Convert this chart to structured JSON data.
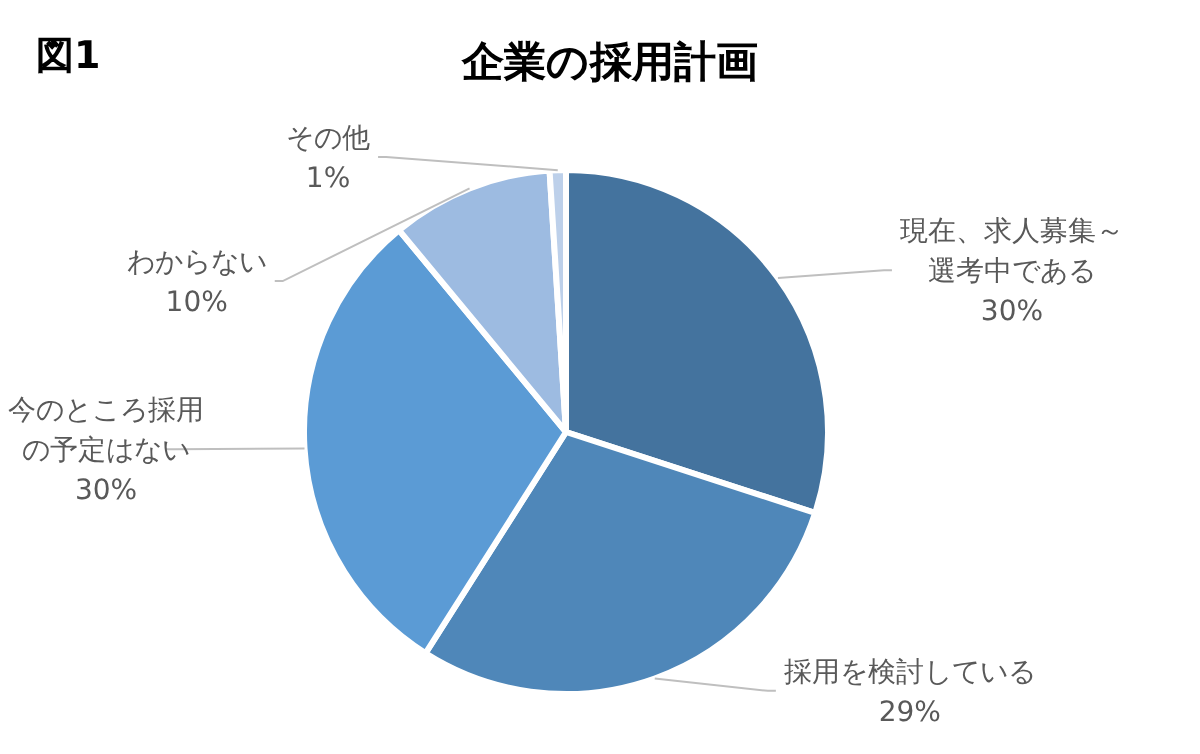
{
  "chart_data": {
    "type": "pie",
    "title": "企業の採用計画",
    "annotations": [
      "図1"
    ],
    "categories": [
      "現在、求人募集～選考中である",
      "採用を検討している",
      "今のところ採用の予定はない",
      "わからない",
      "その他"
    ],
    "values": [
      30,
      29,
      30,
      10,
      1
    ],
    "value_labels": [
      "30%",
      "29%",
      "30%",
      "10%",
      "1%"
    ],
    "colors": [
      "#44739e",
      "#4f87b9",
      "#5b9bd5",
      "#9dbbe1",
      "#bdd0ea"
    ]
  }
}
